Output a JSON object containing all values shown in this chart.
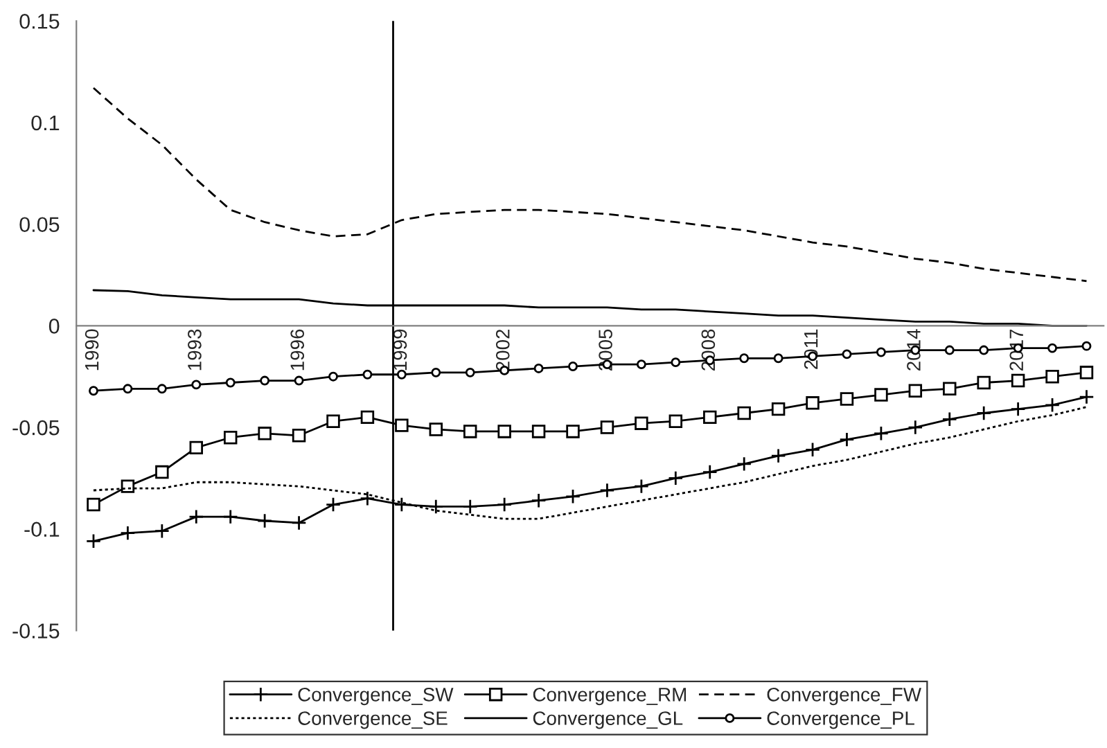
{
  "chart_data": {
    "type": "line",
    "x": [
      1990,
      1991,
      1992,
      1993,
      1994,
      1995,
      1996,
      1997,
      1998,
      1999,
      2000,
      2001,
      2002,
      2003,
      2004,
      2005,
      2006,
      2007,
      2008,
      2009,
      2010,
      2011,
      2012,
      2013,
      2014,
      2015,
      2016,
      2017,
      2018,
      2019
    ],
    "xlim": [
      1989.5,
      2019.5
    ],
    "xticks": [
      1990,
      1993,
      1996,
      1999,
      2002,
      2005,
      2008,
      2011,
      2014,
      2017
    ],
    "ylim": [
      -0.15,
      0.15
    ],
    "yticks": [
      -0.15,
      -0.1,
      -0.05,
      0,
      0.05,
      0.1,
      0.15
    ],
    "grid": false,
    "legend": "bottom",
    "ref_lines": [
      {
        "axis": "x",
        "value": 1998.75,
        "color": "#000000"
      }
    ],
    "series": [
      {
        "name": "Convergence_SW",
        "color": "#000000",
        "marker": "cross",
        "line_style": "solid",
        "values": [
          -0.106,
          -0.102,
          -0.101,
          -0.094,
          -0.094,
          -0.096,
          -0.097,
          -0.088,
          -0.085,
          -0.088,
          -0.089,
          -0.089,
          -0.088,
          -0.086,
          -0.084,
          -0.081,
          -0.079,
          -0.075,
          -0.072,
          -0.068,
          -0.064,
          -0.061,
          -0.056,
          -0.053,
          -0.05,
          -0.046,
          -0.043,
          -0.041,
          -0.039,
          -0.035
        ]
      },
      {
        "name": "Convergence_RM",
        "color": "#000000",
        "marker": "square",
        "line_style": "solid",
        "values": [
          -0.088,
          -0.079,
          -0.072,
          -0.06,
          -0.055,
          -0.053,
          -0.054,
          -0.047,
          -0.045,
          -0.049,
          -0.051,
          -0.052,
          -0.052,
          -0.052,
          -0.052,
          -0.05,
          -0.048,
          -0.047,
          -0.045,
          -0.043,
          -0.041,
          -0.038,
          -0.036,
          -0.034,
          -0.032,
          -0.031,
          -0.028,
          -0.027,
          -0.025,
          -0.023
        ]
      },
      {
        "name": "Convergence_FW",
        "color": "#000000",
        "marker": "none",
        "line_style": "dashed",
        "values": [
          0.117,
          0.102,
          0.089,
          0.072,
          0.057,
          0.051,
          0.047,
          0.044,
          0.045,
          0.052,
          0.055,
          0.056,
          0.057,
          0.057,
          0.056,
          0.055,
          0.053,
          0.051,
          0.049,
          0.047,
          0.044,
          0.041,
          0.039,
          0.036,
          0.033,
          0.031,
          0.028,
          0.026,
          0.024,
          0.022
        ]
      },
      {
        "name": "Convergence_SE",
        "color": "#000000",
        "marker": "none",
        "line_style": "dotted",
        "values": [
          -0.081,
          -0.08,
          -0.08,
          -0.077,
          -0.077,
          -0.078,
          -0.079,
          -0.081,
          -0.083,
          -0.087,
          -0.091,
          -0.093,
          -0.095,
          -0.095,
          -0.092,
          -0.089,
          -0.086,
          -0.083,
          -0.08,
          -0.077,
          -0.073,
          -0.069,
          -0.066,
          -0.062,
          -0.058,
          -0.055,
          -0.051,
          -0.047,
          -0.044,
          -0.04
        ]
      },
      {
        "name": "Convergence_GL",
        "color": "#000000",
        "marker": "none",
        "line_style": "solid",
        "values": [
          0.0175,
          0.017,
          0.015,
          0.014,
          0.013,
          0.013,
          0.013,
          0.011,
          0.01,
          0.01,
          0.01,
          0.01,
          0.01,
          0.009,
          0.009,
          0.009,
          0.008,
          0.008,
          0.007,
          0.006,
          0.005,
          0.005,
          0.004,
          0.003,
          0.002,
          0.002,
          0.001,
          0.001,
          0.0,
          0.0
        ]
      },
      {
        "name": "Convergence_PL",
        "color": "#000000",
        "marker": "circle",
        "line_style": "solid",
        "values": [
          -0.032,
          -0.031,
          -0.031,
          -0.029,
          -0.028,
          -0.027,
          -0.027,
          -0.025,
          -0.024,
          -0.024,
          -0.023,
          -0.023,
          -0.022,
          -0.021,
          -0.02,
          -0.019,
          -0.019,
          -0.018,
          -0.017,
          -0.016,
          -0.016,
          -0.015,
          -0.014,
          -0.013,
          -0.012,
          -0.012,
          -0.012,
          -0.011,
          -0.011,
          -0.01
        ]
      }
    ]
  }
}
